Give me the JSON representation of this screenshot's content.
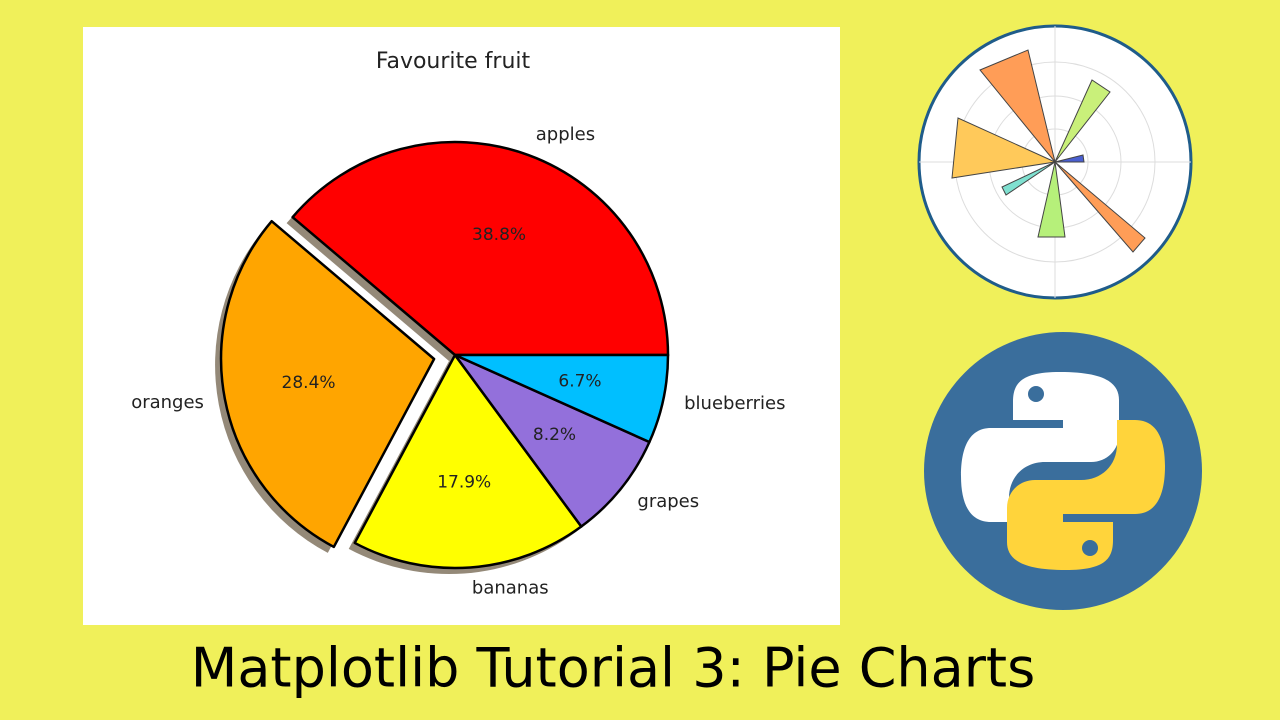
{
  "chart_data": {
    "type": "pie",
    "title": "Favourite fruit",
    "categories": [
      "apples",
      "oranges",
      "bananas",
      "grapes",
      "blueberries"
    ],
    "values": [
      38.8,
      28.4,
      17.9,
      8.2,
      6.7
    ],
    "value_labels": [
      "38.8%",
      "28.4%",
      "17.9%",
      "8.2%",
      "6.7%"
    ],
    "colors": [
      "#ff0000",
      "#ffa500",
      "#ffff00",
      "#9370db",
      "#00bfff"
    ],
    "exploded": "oranges",
    "shadow": true
  },
  "heading": "Matplotlib Tutorial 3: Pie Charts"
}
